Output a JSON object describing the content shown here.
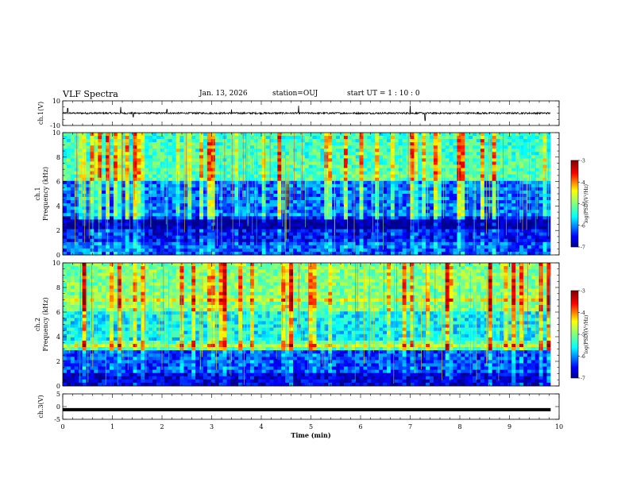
{
  "header": {
    "title": "VLF Spectra",
    "date": "Jan. 13, 2026",
    "station": "station=OUJ",
    "start": "start UT =   1 : 10 : 0"
  },
  "colors": {
    "trace": "#000000",
    "colormap": [
      "#00007f",
      "#0000ff",
      "#007fff",
      "#00ffff",
      "#7fff7f",
      "#ffff00",
      "#ff7f00",
      "#ff0000",
      "#7f0000",
      "#ffffff"
    ]
  },
  "chart_data": [
    {
      "type": "line",
      "name": "ch1-waveform",
      "ylabel": "ch.1(V)",
      "ylim": [
        -10,
        10
      ],
      "yticks": [
        "10",
        "-10"
      ],
      "baseline_value": 0,
      "noise_amplitude": 0.7,
      "spikes": [
        {
          "t": 1.17,
          "v": 5
        },
        {
          "t": 1.42,
          "v": -3
        },
        {
          "t": 2.1,
          "v": 3
        },
        {
          "t": 3.4,
          "v": 3
        },
        {
          "t": 4.75,
          "v": 6
        },
        {
          "t": 7.0,
          "v": 6
        },
        {
          "t": 7.3,
          "v": -6
        },
        {
          "t": 0.1,
          "v": 4
        }
      ]
    },
    {
      "type": "heatmap",
      "name": "ch1-spectrogram",
      "ylabel": "ch.1 Frequency (kHz)",
      "ylim": [
        0,
        10
      ],
      "yticks": [
        "0",
        "2",
        "4",
        "6",
        "8",
        "10"
      ],
      "colorbar": {
        "label": "log(PSD)(V²/Hz)",
        "range": [
          -7,
          -3
        ],
        "ticks": [
          "-3",
          "-4",
          "-5",
          "-6",
          "-7"
        ]
      }
    },
    {
      "type": "heatmap",
      "name": "ch2-spectrogram",
      "ylabel": "ch.2 Frequency (kHz)",
      "ylim": [
        0,
        10
      ],
      "yticks": [
        "0",
        "2",
        "4",
        "6",
        "8",
        "10"
      ],
      "colorbar": {
        "label": "log(PSD)(V²/Hz)",
        "range": [
          -7,
          -3
        ],
        "ticks": [
          "-3",
          "-4",
          "-5",
          "-6",
          "-7"
        ]
      }
    },
    {
      "type": "line",
      "name": "ch3-waveform",
      "ylabel": "ch.3(V)",
      "ylim": [
        -5,
        5
      ],
      "yticks": [
        "5",
        "0",
        "-5"
      ],
      "baseline_value": -1.2
    }
  ],
  "xaxis": {
    "label": "Time (min)",
    "range": [
      0,
      10
    ],
    "data_end": 9.83,
    "ticks": [
      "0",
      "1",
      "2",
      "3",
      "4",
      "5",
      "6",
      "7",
      "8",
      "9",
      "10"
    ]
  }
}
